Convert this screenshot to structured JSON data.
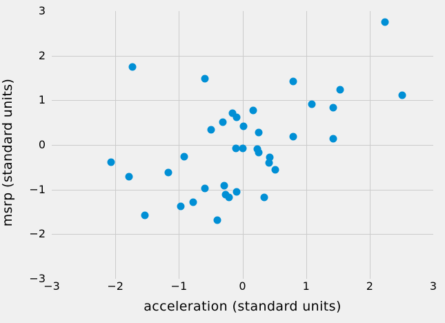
{
  "chart_data": {
    "type": "scatter",
    "title": "",
    "xlabel": "acceleration (standard units)",
    "ylabel": "msrp (standard units)",
    "xlim": [
      -3,
      3
    ],
    "ylim": [
      -3,
      3
    ],
    "x_ticks": [
      -3,
      -2,
      -1,
      0,
      1,
      2,
      3
    ],
    "x_tick_labels": [
      "−3",
      "−2",
      "−1",
      "0",
      "1",
      "2",
      "3"
    ],
    "y_ticks": [
      -3,
      -2,
      -1,
      0,
      1,
      2,
      3
    ],
    "y_tick_labels": [
      "−3",
      "−2",
      "−1",
      "0",
      "1",
      "2",
      "3"
    ],
    "grid_x": [
      -2,
      -1,
      0,
      1,
      2
    ],
    "grid_y": [
      -2,
      -1,
      0,
      1,
      2
    ],
    "grid": true,
    "legend_position": "none",
    "marker_color": "#008fd5",
    "marker_diameter_px": 11,
    "background_color": "#f0f0f0",
    "grid_color": "#cbcbcb",
    "text_color": "#000000",
    "points": [
      {
        "x": -1.73,
        "y": 1.74
      },
      {
        "x": -0.59,
        "y": 1.49
      },
      {
        "x": 2.24,
        "y": 2.75
      },
      {
        "x": 0.8,
        "y": 1.42
      },
      {
        "x": 1.54,
        "y": 1.23
      },
      {
        "x": 2.51,
        "y": 1.12
      },
      {
        "x": 1.09,
        "y": 0.92
      },
      {
        "x": 1.43,
        "y": 0.84
      },
      {
        "x": 0.17,
        "y": 0.77
      },
      {
        "x": -0.16,
        "y": 0.71
      },
      {
        "x": -0.09,
        "y": 0.62
      },
      {
        "x": -0.31,
        "y": 0.51
      },
      {
        "x": 0.02,
        "y": 0.42
      },
      {
        "x": -0.49,
        "y": 0.34
      },
      {
        "x": 0.25,
        "y": 0.28
      },
      {
        "x": 0.8,
        "y": 0.18
      },
      {
        "x": 1.43,
        "y": 0.14
      },
      {
        "x": -0.1,
        "y": -0.08
      },
      {
        "x": 0.01,
        "y": -0.08
      },
      {
        "x": 0.23,
        "y": -0.09
      },
      {
        "x": 0.26,
        "y": -0.17
      },
      {
        "x": 0.43,
        "y": -0.28
      },
      {
        "x": 0.42,
        "y": -0.4
      },
      {
        "x": 0.52,
        "y": -0.55
      },
      {
        "x": -2.07,
        "y": -0.38
      },
      {
        "x": -1.78,
        "y": -0.71
      },
      {
        "x": -1.17,
        "y": -0.62
      },
      {
        "x": -0.92,
        "y": -0.26
      },
      {
        "x": -0.59,
        "y": -0.97
      },
      {
        "x": -0.29,
        "y": -0.92
      },
      {
        "x": -0.27,
        "y": -1.11
      },
      {
        "x": -0.21,
        "y": -1.18
      },
      {
        "x": -0.09,
        "y": -1.05
      },
      {
        "x": 0.34,
        "y": -1.18
      },
      {
        "x": -0.97,
        "y": -1.37
      },
      {
        "x": -0.78,
        "y": -1.28
      },
      {
        "x": -1.54,
        "y": -1.57
      },
      {
        "x": -0.4,
        "y": -1.69
      }
    ]
  }
}
